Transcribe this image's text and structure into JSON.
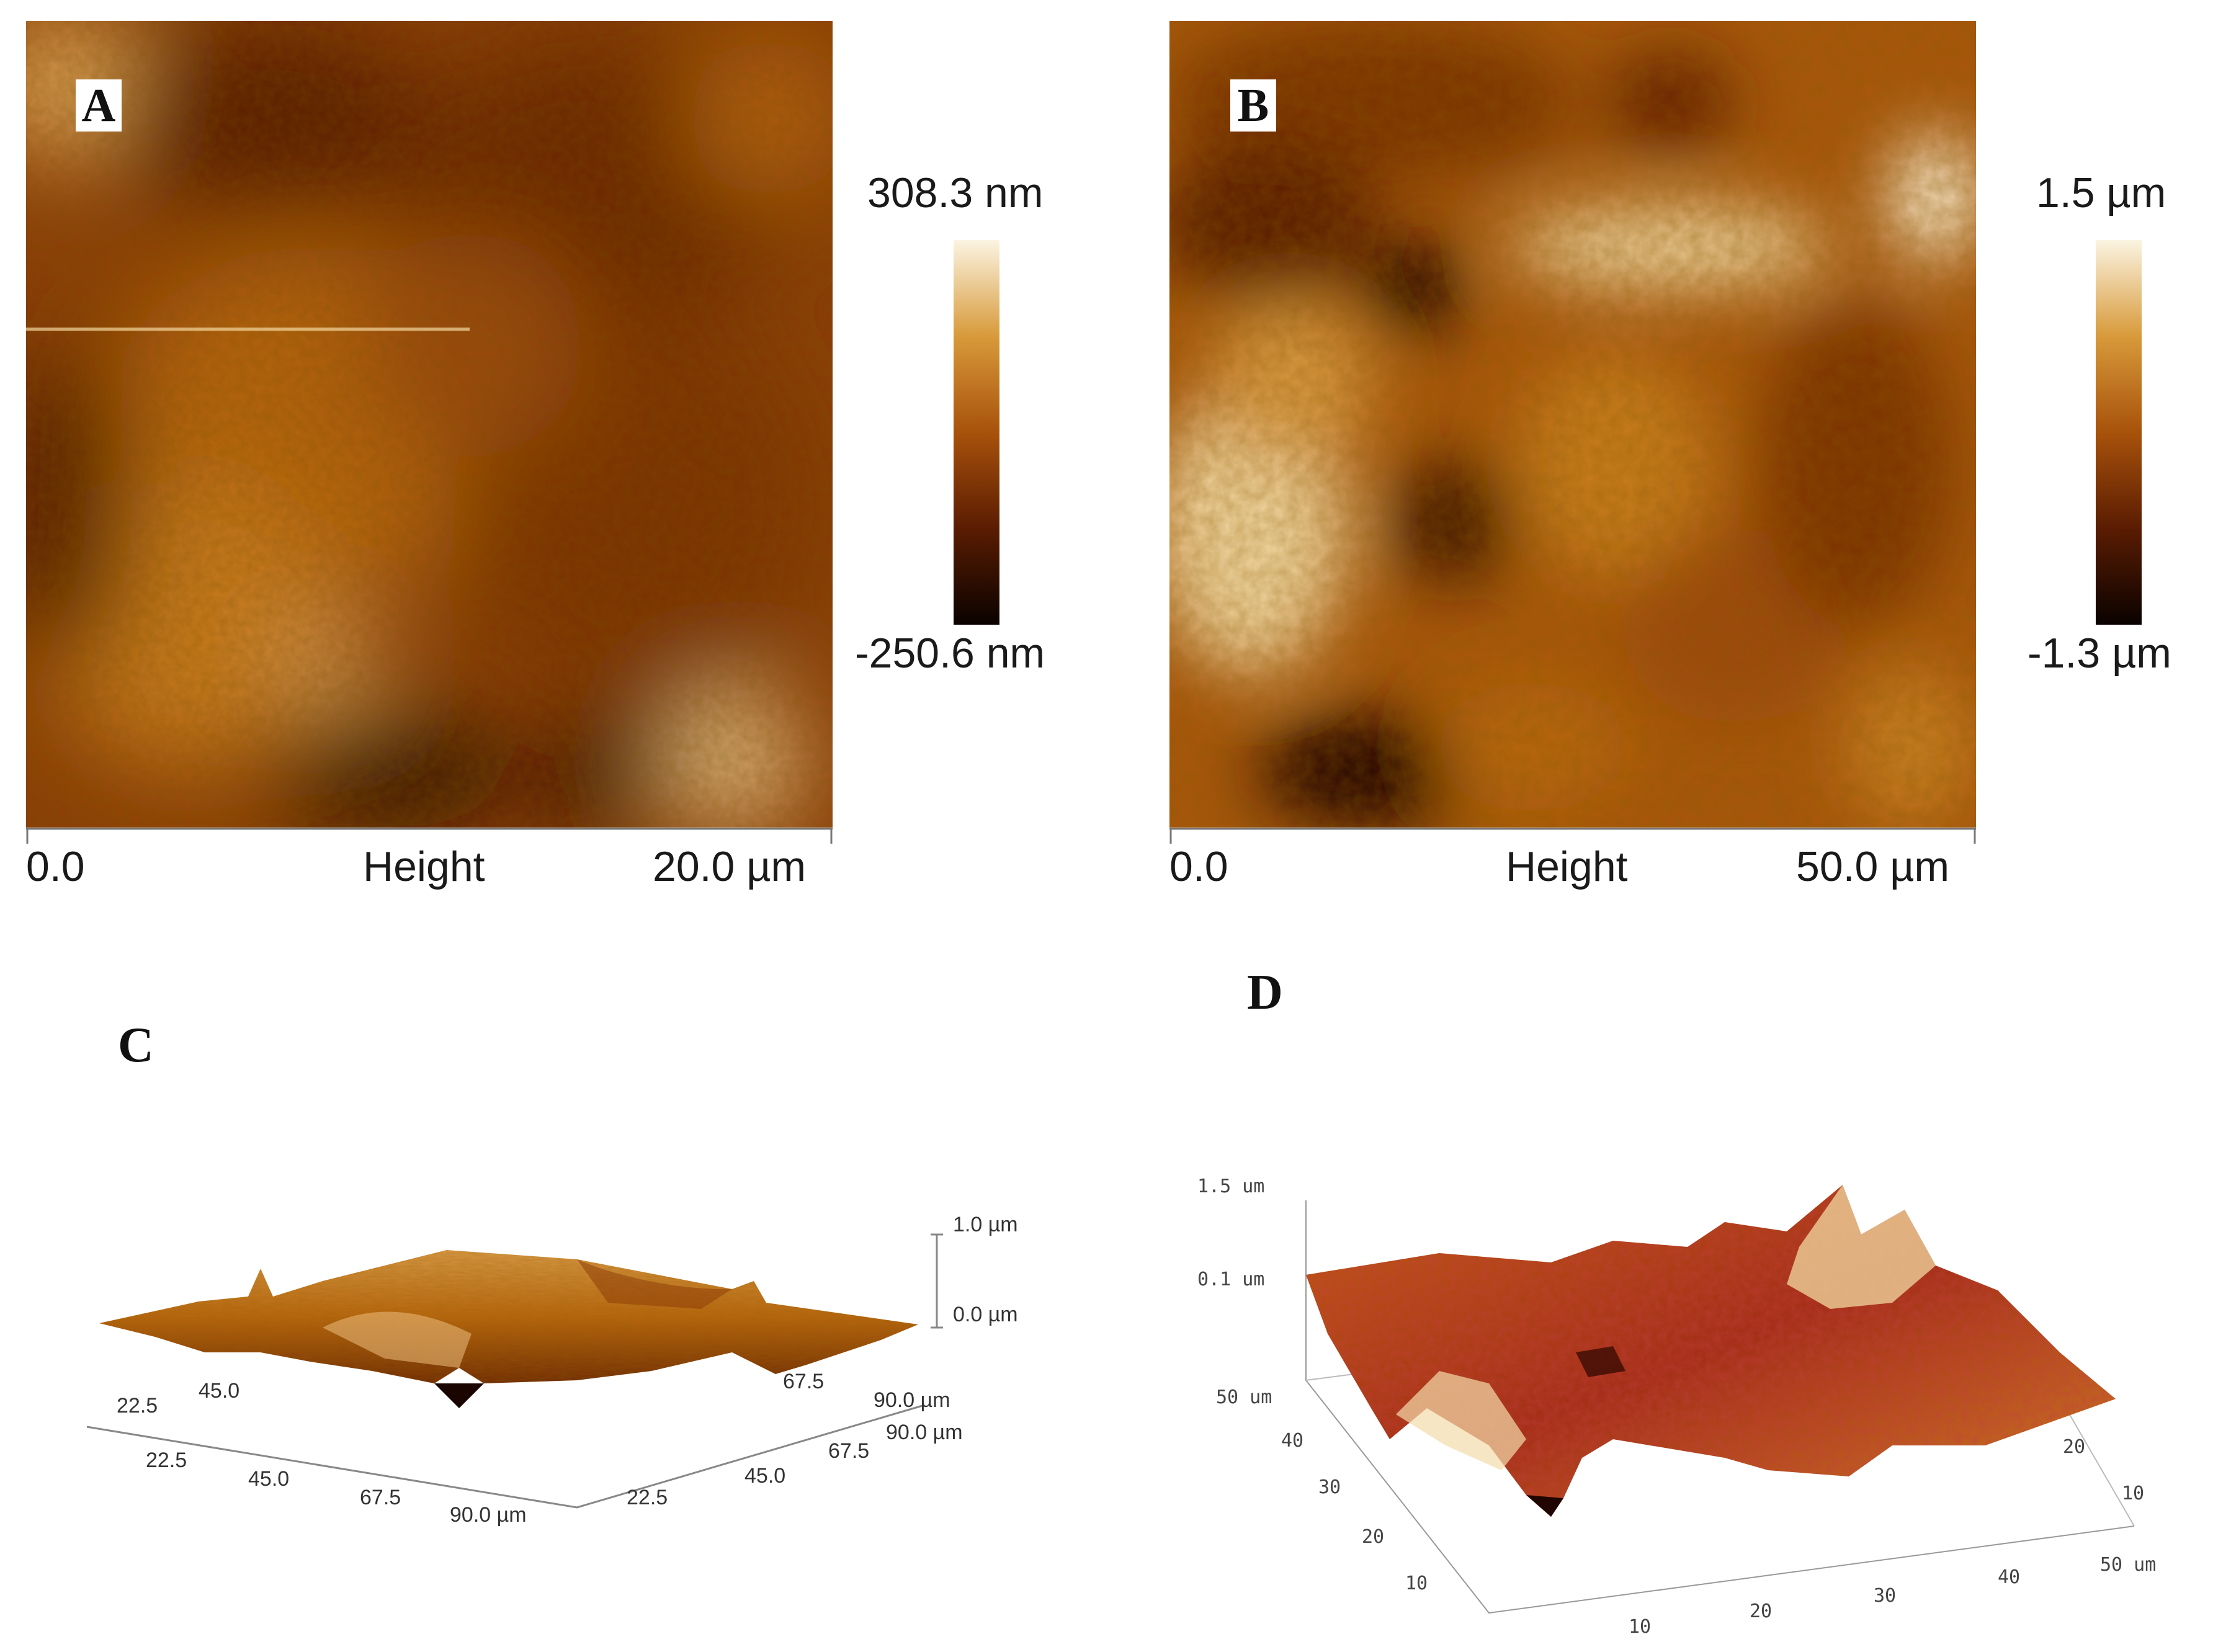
{
  "panels": {
    "A": {
      "letter": "A",
      "colorbar_max": "308.3 nm",
      "colorbar_min": "-250.6 nm",
      "axis_start": "0.0",
      "axis_mid": "Height",
      "axis_end": "20.0 µm"
    },
    "B": {
      "letter": "B",
      "colorbar_max": "1.5 µm",
      "colorbar_min": "-1.3 µm",
      "axis_start": "0.0",
      "axis_mid": "Height",
      "axis_end": "50.0 µm"
    },
    "C": {
      "letter": "C",
      "z_top": "1.0 µm",
      "z_zero": "0.0 µm",
      "left_axis_ticks": [
        "22.5",
        "45.0",
        "67.5",
        "90.0 µm"
      ],
      "right_axis_ticks": [
        "22.5",
        "45.0",
        "67.5",
        "90.0 µm"
      ],
      "back_left_ticks": [
        "22.5",
        "45.0"
      ],
      "back_right_ticks": [
        "67.5",
        "90.0 µm"
      ]
    },
    "D": {
      "letter": "D",
      "z_top": "1.5 um",
      "z_mid": "0.1 um",
      "left_axis_ticks": [
        "50 um",
        "40",
        "30",
        "20",
        "10"
      ],
      "bottom_axis_ticks": [
        "10",
        "20",
        "30",
        "40",
        "50 um"
      ],
      "right_axis_ticks": [
        "20",
        "10"
      ]
    }
  },
  "colors": {
    "afm_dark": "#1a0500",
    "afm_mid": "#8a3a06",
    "afm_orange": "#c7700f",
    "afm_light": "#f5e6c2"
  }
}
